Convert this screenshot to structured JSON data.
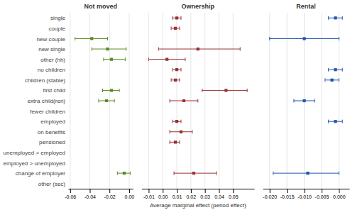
{
  "chart_data": [
    {
      "type": "errorbar",
      "title": "Not moved",
      "color": "#5b8c23",
      "marker": "square",
      "grid": true,
      "categories": [
        "single",
        "couple",
        "new couple",
        "new single",
        "other (hh)",
        "no children",
        "children (stable)",
        "first child",
        "extra child(ren)",
        "fewer children",
        "employed",
        "on benefits",
        "pensioned",
        "unemployed > employed",
        "employed > unemployed",
        "change of employer",
        "other (sec)"
      ],
      "values": [
        null,
        null,
        -0.038,
        -0.022,
        -0.018,
        null,
        null,
        -0.018,
        -0.023,
        null,
        null,
        null,
        null,
        null,
        null,
        -0.005,
        null
      ],
      "lower": [
        null,
        null,
        -0.055,
        -0.038,
        -0.026,
        null,
        null,
        -0.027,
        -0.031,
        null,
        null,
        null,
        null,
        null,
        null,
        -0.012,
        null
      ],
      "upper": [
        null,
        null,
        -0.022,
        -0.003,
        -0.004,
        null,
        null,
        -0.01,
        -0.015,
        null,
        null,
        null,
        null,
        null,
        null,
        0.001,
        null
      ],
      "xlim": [
        -0.062,
        0.004
      ],
      "xticks": [
        -0.06,
        -0.04,
        -0.02,
        {
          "value": 0.0,
          "label": "0.00"
        }
      ]
    },
    {
      "type": "errorbar",
      "title": "Ownership",
      "color": "#993333",
      "marker": "square",
      "grid": true,
      "tick_labels": "x",
      "xlabel": "Average marginal effect (period effect)",
      "categories": [
        "single",
        "couple",
        "new couple",
        "new single",
        "other (hh)",
        "no children",
        "children (stable)",
        "first child",
        "extra child(ren)",
        "fewer children",
        "employed",
        "on benefits",
        "pensioned",
        "unemployed > employed",
        "employed > unemployed",
        "change of employer",
        "other (sec)"
      ],
      "values": [
        0.01,
        0.009,
        null,
        0.025,
        0.003,
        0.01,
        0.009,
        0.045,
        0.015,
        null,
        0.01,
        0.013,
        0.009,
        null,
        null,
        0.022,
        null
      ],
      "lower": [
        0.007,
        0.006,
        null,
        -0.003,
        -0.01,
        0.007,
        0.006,
        0.028,
        0.005,
        null,
        0.007,
        0.005,
        0.005,
        null,
        null,
        0.008,
        null
      ],
      "upper": [
        0.013,
        0.012,
        null,
        0.055,
        0.016,
        0.013,
        0.012,
        0.06,
        0.025,
        null,
        0.013,
        0.021,
        0.012,
        null,
        null,
        0.038,
        null
      ],
      "xlim": [
        -0.015,
        0.065
      ],
      "xticks": [
        -0.01,
        {
          "value": 0.0,
          "label": "0.00"
        },
        0.01,
        0.02,
        0.03,
        0.04,
        0.05
      ]
    },
    {
      "type": "errorbar",
      "title": "Rental",
      "color": "#2255aa",
      "marker": "square",
      "grid": true,
      "tick_labels": "x",
      "categories": [
        "single",
        "couple",
        "new couple",
        "new single",
        "other (hh)",
        "no children",
        "children (stable)",
        "first child",
        "extra child(ren)",
        "fewer children",
        "employed",
        "on benefits",
        "pensioned",
        "unemployed > employed",
        "employed > unemployed",
        "change of employer",
        "other (sec)"
      ],
      "values": [
        -0.001,
        null,
        -0.01,
        null,
        null,
        -0.001,
        -0.002,
        null,
        -0.01,
        null,
        -0.001,
        null,
        null,
        null,
        null,
        -0.009,
        null
      ],
      "lower": [
        -0.003,
        null,
        -0.02,
        null,
        null,
        -0.003,
        -0.004,
        null,
        -0.013,
        null,
        -0.003,
        null,
        null,
        null,
        null,
        -0.019,
        null
      ],
      "upper": [
        0.001,
        null,
        -0.0,
        null,
        null,
        0.001,
        0.0,
        null,
        -0.007,
        null,
        0.001,
        null,
        null,
        null,
        null,
        0.0,
        null
      ],
      "xlim": [
        -0.022,
        0.003
      ],
      "xticks": [
        {
          "value": -0.02,
          "label": "-0.020"
        },
        -0.015,
        {
          "value": -0.01,
          "label": "-0.010"
        },
        -0.005,
        {
          "value": 0.0,
          "label": "0.000"
        }
      ]
    }
  ]
}
